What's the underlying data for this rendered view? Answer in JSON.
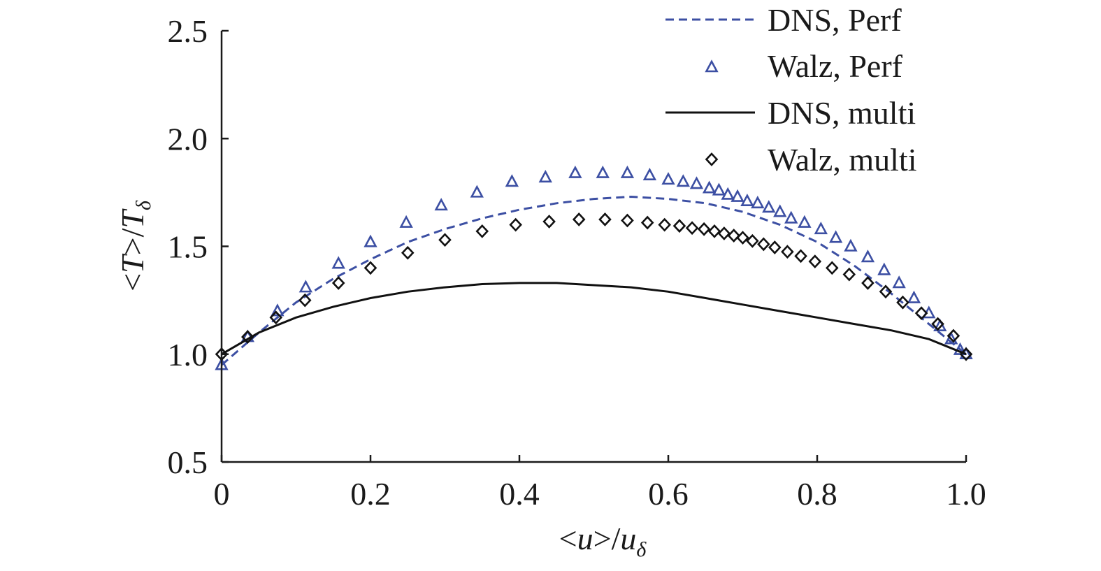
{
  "colors": {
    "blue": "#3c4fa3",
    "black": "#111111"
  },
  "chart_data": {
    "type": "line",
    "title": "",
    "xlabel": {
      "prefix": "<",
      "var": "u",
      "suffix": ">/",
      "den": "u",
      "sub": "δ"
    },
    "ylabel": {
      "prefix": "<",
      "var": "T",
      "suffix": ">/",
      "den": "T",
      "sub": "δ"
    },
    "xlim": [
      0,
      1.0
    ],
    "ylim": [
      0.5,
      2.5
    ],
    "xticks": [
      0,
      0.2,
      0.4,
      0.6,
      0.8,
      1.0
    ],
    "xtick_labels": [
      "0",
      "0.2",
      "0.4",
      "0.6",
      "0.8",
      "1.0"
    ],
    "yticks": [
      0.5,
      1.0,
      1.5,
      2.0,
      2.5
    ],
    "ytick_labels": [
      "0.5",
      "1.0",
      "1.5",
      "2.0",
      "2.5"
    ],
    "legend_position": "top-right",
    "series": [
      {
        "name": "DNS, Perf",
        "style": "dashed",
        "color": "#3c4fa3",
        "x": [
          0,
          0.05,
          0.1,
          0.15,
          0.2,
          0.25,
          0.3,
          0.35,
          0.4,
          0.45,
          0.5,
          0.55,
          0.6,
          0.65,
          0.7,
          0.75,
          0.8,
          0.85,
          0.9,
          0.95,
          1.0
        ],
        "y": [
          0.95,
          1.1,
          1.24,
          1.35,
          1.44,
          1.52,
          1.58,
          1.63,
          1.67,
          1.7,
          1.72,
          1.73,
          1.72,
          1.7,
          1.66,
          1.6,
          1.52,
          1.41,
          1.28,
          1.14,
          1.0
        ]
      },
      {
        "name": "Walz, Perf",
        "style": "triangle",
        "color": "#3c4fa3",
        "x": [
          0,
          0.035,
          0.075,
          0.113,
          0.157,
          0.2,
          0.248,
          0.295,
          0.343,
          0.39,
          0.435,
          0.475,
          0.512,
          0.545,
          0.575,
          0.6,
          0.62,
          0.638,
          0.655,
          0.668,
          0.68,
          0.693,
          0.706,
          0.72,
          0.735,
          0.75,
          0.765,
          0.783,
          0.805,
          0.825,
          0.845,
          0.868,
          0.89,
          0.91,
          0.93,
          0.95,
          0.965,
          0.98,
          0.992,
          1.0
        ],
        "y": [
          0.95,
          1.08,
          1.2,
          1.31,
          1.42,
          1.52,
          1.61,
          1.69,
          1.75,
          1.8,
          1.82,
          1.84,
          1.84,
          1.84,
          1.83,
          1.81,
          1.8,
          1.79,
          1.77,
          1.76,
          1.74,
          1.73,
          1.71,
          1.7,
          1.68,
          1.66,
          1.63,
          1.61,
          1.58,
          1.54,
          1.5,
          1.45,
          1.39,
          1.33,
          1.26,
          1.19,
          1.13,
          1.07,
          1.02,
          1.0
        ]
      },
      {
        "name": "DNS, multi",
        "style": "solid",
        "color": "#111111",
        "x": [
          0,
          0.05,
          0.1,
          0.15,
          0.2,
          0.25,
          0.3,
          0.35,
          0.4,
          0.45,
          0.5,
          0.55,
          0.6,
          0.65,
          0.7,
          0.75,
          0.8,
          0.85,
          0.9,
          0.95,
          1.0
        ],
        "y": [
          1.0,
          1.1,
          1.17,
          1.22,
          1.26,
          1.29,
          1.31,
          1.325,
          1.33,
          1.33,
          1.32,
          1.31,
          1.29,
          1.26,
          1.23,
          1.2,
          1.17,
          1.14,
          1.11,
          1.07,
          1.0
        ]
      },
      {
        "name": "Walz, multi",
        "style": "diamond",
        "color": "#111111",
        "x": [
          0,
          0.035,
          0.073,
          0.112,
          0.157,
          0.2,
          0.25,
          0.3,
          0.35,
          0.395,
          0.44,
          0.48,
          0.515,
          0.545,
          0.572,
          0.595,
          0.615,
          0.632,
          0.648,
          0.662,
          0.675,
          0.688,
          0.7,
          0.713,
          0.728,
          0.743,
          0.76,
          0.778,
          0.797,
          0.82,
          0.843,
          0.868,
          0.892,
          0.915,
          0.94,
          0.962,
          0.983,
          1.0
        ],
        "y": [
          1.0,
          1.08,
          1.17,
          1.25,
          1.33,
          1.4,
          1.47,
          1.53,
          1.57,
          1.6,
          1.615,
          1.625,
          1.625,
          1.62,
          1.61,
          1.6,
          1.595,
          1.585,
          1.58,
          1.57,
          1.56,
          1.55,
          1.54,
          1.525,
          1.51,
          1.495,
          1.475,
          1.455,
          1.43,
          1.4,
          1.37,
          1.33,
          1.29,
          1.24,
          1.19,
          1.14,
          1.085,
          1.0
        ]
      }
    ]
  }
}
